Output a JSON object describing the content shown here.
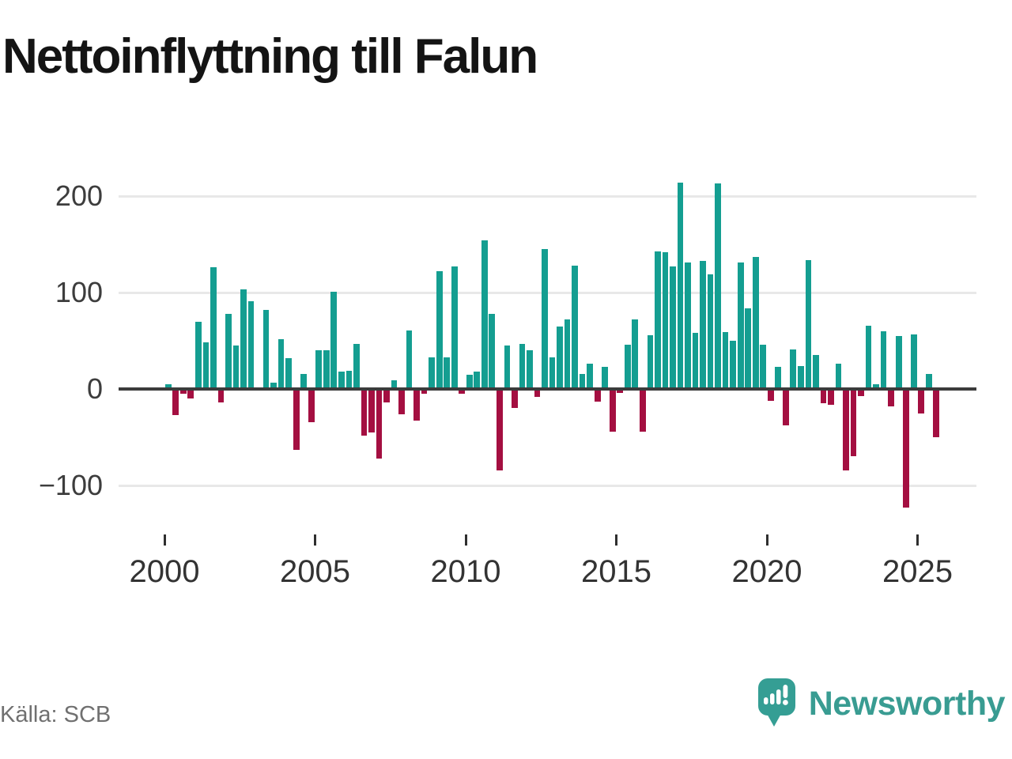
{
  "page": {
    "title": "Nettoinflyttning till Falun"
  },
  "source": {
    "label": "Källa: SCB"
  },
  "branding": {
    "name": "Newsworthy",
    "logo_icon": "newsworthy-speech-bubble-bar-chart-icon",
    "color": "#399c92"
  },
  "chart_data": {
    "type": "bar",
    "title": "Nettoinflyttning till Falun",
    "xlabel": "",
    "ylabel": "",
    "frequency": "quarterly",
    "start": "2000 Q1",
    "end": "2025 Q3",
    "grid": "horizontal",
    "colors": {
      "positive": "#149e91",
      "negative": "#a40f41",
      "axis": "#3b3b3b",
      "gridline": "#e8e8e8"
    },
    "y_axis": {
      "ticks": [
        {
          "label": "200",
          "value": 200
        },
        {
          "label": "100",
          "value": 100
        },
        {
          "label": "0",
          "value": 0
        },
        {
          "label": "−100",
          "value": -100
        }
      ]
    },
    "x_axis": {
      "ticks": [
        {
          "label": "2000",
          "year": 2000
        },
        {
          "label": "2005",
          "year": 2005
        },
        {
          "label": "2010",
          "year": 2010
        },
        {
          "label": "2015",
          "year": 2015
        },
        {
          "label": "2020",
          "year": 2020
        },
        {
          "label": "2025",
          "year": 2025
        }
      ]
    },
    "years": [
      {
        "year": 2000,
        "values": [
          5,
          -27,
          -5,
          -10
        ]
      },
      {
        "year": 2001,
        "values": [
          70,
          48,
          126,
          -14
        ]
      },
      {
        "year": 2002,
        "values": [
          78,
          45,
          103,
          91
        ]
      },
      {
        "year": 2003,
        "values": [
          0,
          82,
          7,
          52
        ]
      },
      {
        "year": 2004,
        "values": [
          32,
          -63,
          16,
          -34
        ]
      },
      {
        "year": 2005,
        "values": [
          40,
          40,
          101,
          18
        ]
      },
      {
        "year": 2006,
        "values": [
          19,
          47,
          -48,
          -45
        ]
      },
      {
        "year": 2007,
        "values": [
          -72,
          -14,
          9,
          -26
        ]
      },
      {
        "year": 2008,
        "values": [
          61,
          -33,
          -5,
          33
        ]
      },
      {
        "year": 2009,
        "values": [
          122,
          33,
          127,
          -5
        ]
      },
      {
        "year": 2010,
        "values": [
          15,
          18,
          154,
          78
        ]
      },
      {
        "year": 2011,
        "values": [
          -84,
          45,
          -20,
          47
        ]
      },
      {
        "year": 2012,
        "values": [
          40,
          -8,
          145,
          33
        ]
      },
      {
        "year": 2013,
        "values": [
          65,
          72,
          128,
          16
        ]
      },
      {
        "year": 2014,
        "values": [
          26,
          -13,
          23,
          -44
        ]
      },
      {
        "year": 2015,
        "values": [
          -4,
          46,
          72,
          -44
        ]
      },
      {
        "year": 2016,
        "values": [
          56,
          143,
          142,
          127
        ]
      },
      {
        "year": 2017,
        "values": [
          214,
          131,
          58,
          133
        ]
      },
      {
        "year": 2018,
        "values": [
          119,
          213,
          59,
          50
        ]
      },
      {
        "year": 2019,
        "values": [
          131,
          84,
          137,
          46
        ]
      },
      {
        "year": 2020,
        "values": [
          -12,
          23,
          -38,
          41
        ]
      },
      {
        "year": 2021,
        "values": [
          24,
          134,
          35,
          -15
        ]
      },
      {
        "year": 2022,
        "values": [
          -16,
          26,
          -84,
          -70
        ]
      },
      {
        "year": 2023,
        "values": [
          -7,
          66,
          5,
          60
        ]
      },
      {
        "year": 2024,
        "values": [
          -18,
          55,
          -123,
          57
        ]
      },
      {
        "year": 2025,
        "values": [
          -25,
          16,
          -50
        ]
      }
    ]
  }
}
